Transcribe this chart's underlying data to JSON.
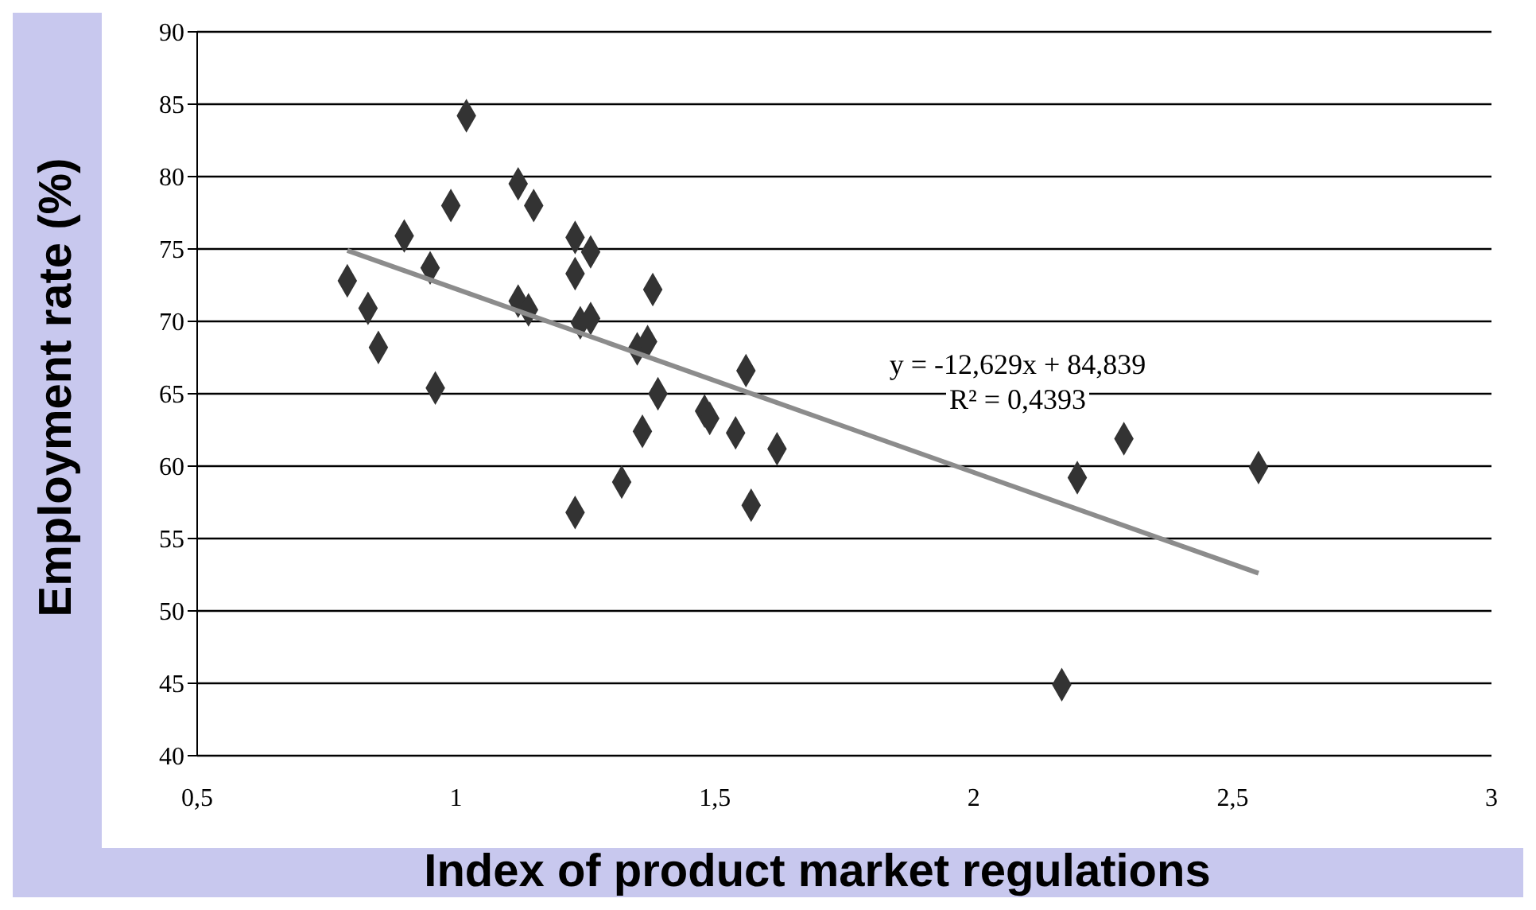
{
  "chart_data": {
    "type": "scatter",
    "xlabel": "Index of product market regulations",
    "ylabel": "Employment rate (%)",
    "xlim": [
      0.5,
      3
    ],
    "xticks": [
      {
        "value": 0.5,
        "label": "0,5"
      },
      1,
      {
        "value": 1.5,
        "label": "1,5"
      },
      2,
      {
        "value": 2.5,
        "label": "2,5"
      },
      3
    ],
    "ylim": [
      40,
      90
    ],
    "yticks": [
      40,
      45,
      50,
      55,
      60,
      65,
      70,
      75,
      80,
      85,
      90
    ],
    "grid": "y",
    "marker": "diamond",
    "series": [
      {
        "type": "scatter",
        "color": "#333333",
        "x": [
          0.79,
          0.83,
          0.85,
          0.9,
          0.96,
          0.95,
          0.99,
          1.02,
          1.12,
          1.12,
          1.15,
          1.14,
          1.23,
          1.23,
          1.26,
          1.24,
          1.26,
          1.38,
          1.35,
          1.37,
          1.39,
          1.36,
          1.32,
          1.23,
          1.48,
          1.49,
          1.54,
          1.56,
          1.57,
          1.62,
          2.17,
          2.2,
          2.29,
          2.55
        ],
        "values": [
          72.8,
          70.9,
          68.2,
          75.9,
          65.4,
          73.7,
          78.0,
          84.2,
          79.5,
          71.4,
          78.0,
          70.8,
          75.8,
          73.3,
          74.8,
          69.9,
          70.2,
          72.2,
          68.1,
          68.6,
          65.0,
          62.4,
          58.9,
          56.8,
          63.8,
          63.3,
          62.3,
          66.6,
          57.3,
          61.2,
          44.9,
          59.2,
          61.9,
          59.9
        ]
      },
      {
        "type": "line",
        "color": "#8c8c8c",
        "marker": "none",
        "x": [
          0.79,
          2.55
        ],
        "values": [
          74.9,
          52.6
        ]
      }
    ],
    "annotations": [
      "y = -12,629x + 84,839",
      "R² = 0,4393"
    ]
  }
}
